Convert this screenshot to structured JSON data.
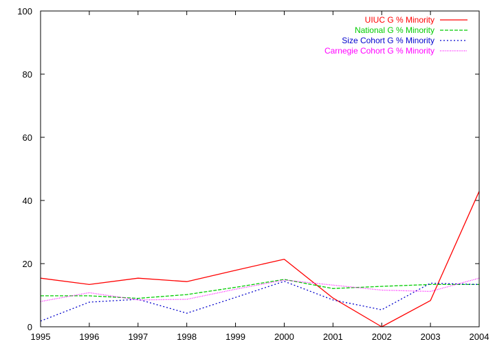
{
  "chart_data": {
    "type": "line",
    "title": "",
    "xlabel": "",
    "ylabel": "",
    "xlim": [
      1995,
      2004
    ],
    "ylim": [
      0,
      100
    ],
    "x_ticks": [
      1995,
      1996,
      1997,
      1998,
      1999,
      2000,
      2001,
      2002,
      2003,
      2004
    ],
    "y_ticks": [
      0,
      20,
      40,
      60,
      80,
      100
    ],
    "grid": false,
    "legend_position": "top-right",
    "x": [
      1995,
      1996,
      1997,
      1998,
      1999,
      2000,
      2001,
      2002,
      2003,
      2004
    ],
    "series": [
      {
        "name": "UIUC G % Minority",
        "color": "#ff0000",
        "line_style": "solid",
        "values": [
          15.4,
          13.4,
          15.4,
          14.3,
          17.9,
          21.4,
          9.1,
          0.0,
          8.3,
          42.9
        ]
      },
      {
        "name": "National G % Minority",
        "color": "#00cc00",
        "line_style": "dashed",
        "values": [
          9.8,
          9.8,
          9.0,
          10.2,
          12.5,
          15.0,
          12.1,
          12.8,
          13.4,
          13.4
        ]
      },
      {
        "name": "Size Cohort G % Minority",
        "color": "#0000cc",
        "line_style": "dotted",
        "values": [
          1.8,
          7.8,
          8.7,
          4.3,
          9.3,
          14.4,
          8.5,
          5.4,
          13.8,
          13.4
        ]
      },
      {
        "name": "Carnegie Cohort G % Minority",
        "color": "#ff00ff",
        "line_style": "fine-dotted",
        "values": [
          8.0,
          10.8,
          8.5,
          8.7,
          11.9,
          14.8,
          13.2,
          11.6,
          11.2,
          15.4
        ]
      }
    ]
  }
}
